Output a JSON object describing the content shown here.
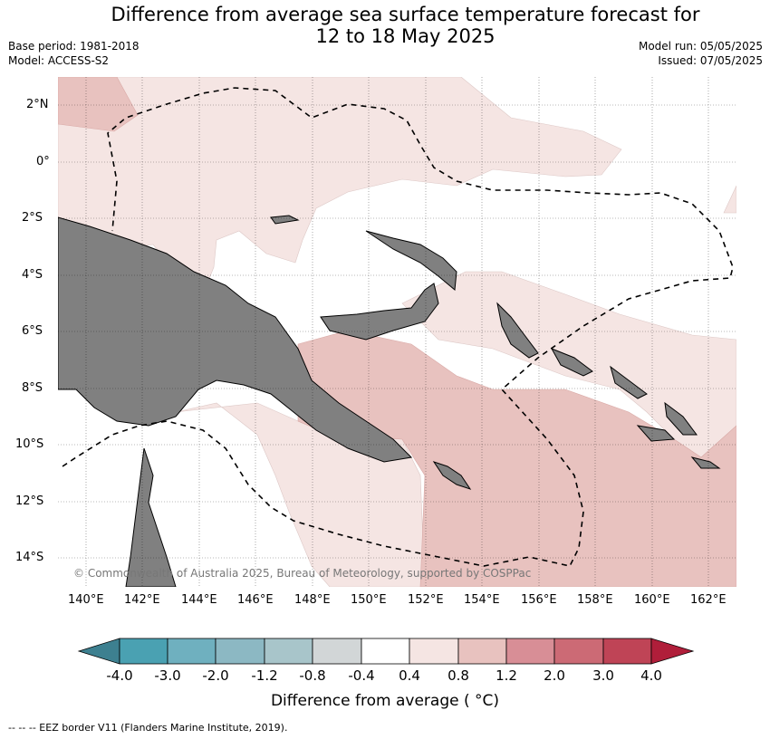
{
  "header": {
    "title_line1": "Difference from average sea surface temperature forecast for",
    "title_line2": "12 to 18 May 2025",
    "base_period": "Base period: 1981-2018",
    "model": "Model: ACCESS-S2",
    "model_run": "Model run: 05/05/2025",
    "issued": "Issued: 07/05/2025"
  },
  "map": {
    "lon_range": [
      139,
      163
    ],
    "lat_range": [
      -15,
      3
    ],
    "lon_ticks": [
      "140°E",
      "142°E",
      "144°E",
      "146°E",
      "148°E",
      "150°E",
      "152°E",
      "154°E",
      "156°E",
      "158°E",
      "160°E",
      "162°E"
    ],
    "lat_ticks": [
      "2°N",
      "0°",
      "2°S",
      "4°S",
      "6°S",
      "8°S",
      "10°S",
      "12°S",
      "14°S"
    ],
    "copyright": "© Commonwealth of Australia 2025, Bureau of Meteorology, supported by COSPPac",
    "land_color": "#808080"
  },
  "colorbar": {
    "labels": [
      "-4.0",
      "-3.0",
      "-2.0",
      "-1.2",
      "-0.8",
      "-0.4",
      "0.4",
      "0.8",
      "1.2",
      "2.0",
      "3.0",
      "4.0"
    ],
    "colors": [
      "#3d8090",
      "#4aa1b2",
      "#6fb0bf",
      "#8cb8c3",
      "#a8c5ca",
      "#d2d6d7",
      "#ffffff",
      "#f5e5e3",
      "#e8c2bf",
      "#d88e96",
      "#cc6a75",
      "#bf4456",
      "#b01e3a"
    ],
    "axis_label": "Difference from average ( °C)"
  },
  "legend": {
    "eez": "--  --  -- EEZ border V11 (Flanders Marine Institute, 2019)."
  }
}
